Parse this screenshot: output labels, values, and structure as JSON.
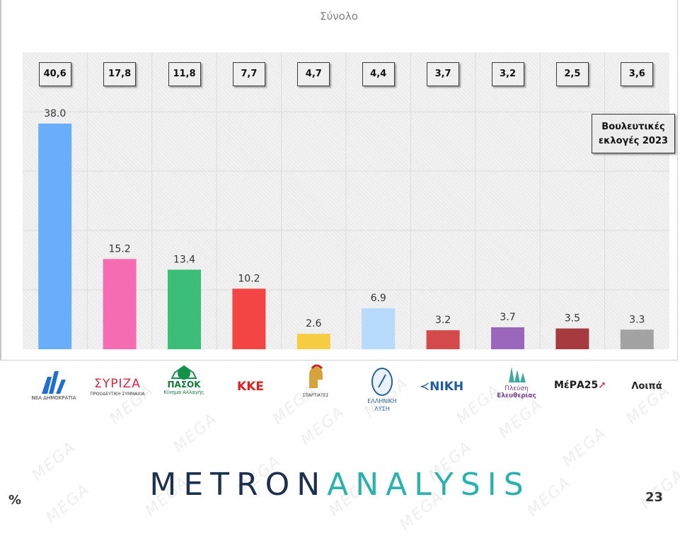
{
  "chart_data": {
    "type": "bar",
    "title": "Σύνολο",
    "categories": [
      "ΝΔ",
      "ΣΥΡΙΖΑ",
      "ΠΑΣΟΚ",
      "ΚΚΕ",
      "Σπαρτιάτες",
      "Ελληνική Λύση",
      "ΝΙΚΗ",
      "Πλεύση Ελευθερίας",
      "ΜέΡΑ25",
      "Λοιπά"
    ],
    "values": [
      38.0,
      15.2,
      13.4,
      10.2,
      2.6,
      6.9,
      3.2,
      3.7,
      3.5,
      3.3
    ],
    "value_labels": [
      "38.0",
      "15.2",
      "13.4",
      "10.2",
      "2.6",
      "6.9",
      "3.2",
      "3.7",
      "3.5",
      "3.3"
    ],
    "colors": [
      "#69aef9",
      "#f56cb3",
      "#3bbf77",
      "#f44545",
      "#f6cd40",
      "#b9dbfb",
      "#d44a4a",
      "#9a67bd",
      "#a63a3e",
      "#a3a3a3"
    ],
    "ylim": [
      0,
      50
    ],
    "grid": true,
    "comparison_label": "Βουλευτικές εκλογές 2023",
    "comparison_values": [
      "40,6",
      "17,8",
      "11,8",
      "7,7",
      "4,7",
      "4,4",
      "3,7",
      "3,2",
      "2,5",
      "3,6"
    ]
  },
  "logos": [
    {
      "icon": "nd-logo-icon",
      "caption": "ΝΕΑ ΔΗΜΟΚΡΑΤΙΑ"
    },
    {
      "icon": "syriza-logo-icon",
      "text": "ΣΥΡΙΖΑ",
      "caption": "ΠΡΟΟΔΕΥΤΙΚΗ ΣΥΜΜΑΧΙΑ"
    },
    {
      "icon": "pasok-logo-icon",
      "text": "ΠΑΣΟΚ",
      "caption": "Κίνημα Αλλαγής"
    },
    {
      "icon": "kke-logo-icon",
      "text": "ΚΚΕ"
    },
    {
      "icon": "spartiates-logo-icon",
      "caption": "ΣΠΑΡΤΙΑΤΕΣ"
    },
    {
      "icon": "elliniki-lysi-logo-icon",
      "text": "ΕΛΛΗΝΙΚΗ ΛΥΣΗ"
    },
    {
      "icon": "niki-logo-icon",
      "text": "ΝΙΚΗ"
    },
    {
      "icon": "plefsi-logo-icon",
      "text": "Πλεύση",
      "text2": "Ελευθερίας"
    },
    {
      "icon": "mera25-logo-icon",
      "text": "ΜέΡΑ25"
    },
    {
      "icon": "other-label",
      "text": "Λοιπά"
    }
  ],
  "footer": {
    "brand_part1": "METRON",
    "brand_part2": "ANALYSIS",
    "percent_label": "%",
    "page_number": "23",
    "watermark": "MEGA"
  }
}
